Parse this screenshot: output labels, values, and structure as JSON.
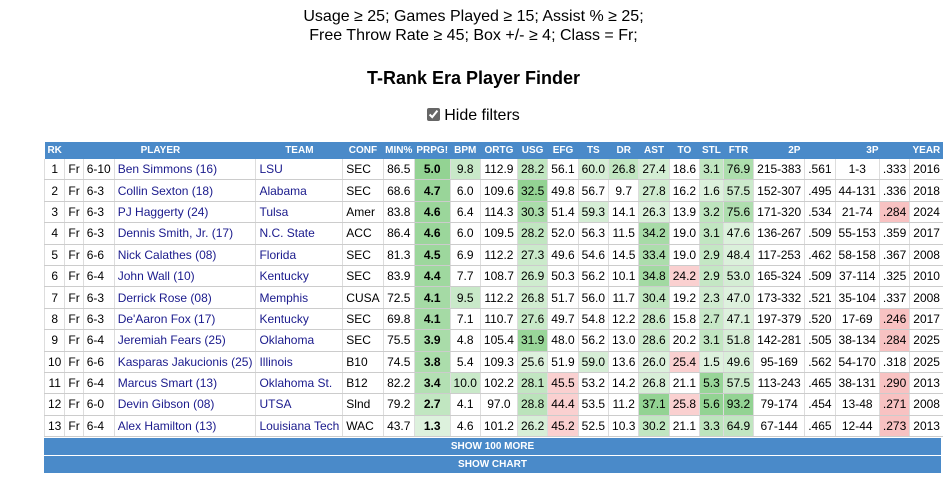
{
  "header": {
    "filter_lines": [
      "Usage ≥ 25; Games Played ≥ 15; Assist % ≥ 25;",
      "Free Throw Rate ≥ 45; Box +/- ≥ 4; Class = Fr;"
    ],
    "title": "T-Rank Era Player Finder",
    "checkbox_label": "Hide filters"
  },
  "table": {
    "columns": [
      "RK",
      "PLAYER",
      "TEAM",
      "CONF",
      "MIN%",
      "PRPG!",
      "BPM",
      "ORTG",
      "USG",
      "EFG",
      "TS",
      "DR",
      "AST",
      "TO",
      "STL",
      "FTR",
      "2P",
      "3P",
      "YEAR"
    ],
    "rows": [
      [
        "1",
        "Fr",
        "6-10",
        "Ben Simmons (16)",
        "LSU",
        "SEC",
        "86.5",
        "5.0",
        "9.8",
        "112.9",
        "28.2",
        "56.1",
        "60.0",
        "26.8",
        "27.4",
        "18.6",
        "3.1",
        "76.9",
        "215-383",
        ".561",
        "1-3",
        ".333",
        "2016"
      ],
      [
        "2",
        "Fr",
        "6-3",
        "Collin Sexton (18)",
        "Alabama",
        "SEC",
        "68.6",
        "4.7",
        "6.0",
        "109.6",
        "32.5",
        "49.8",
        "56.7",
        "9.7",
        "27.8",
        "16.2",
        "1.6",
        "57.5",
        "152-307",
        ".495",
        "44-131",
        ".336",
        "2018"
      ],
      [
        "3",
        "Fr",
        "6-3",
        "PJ Haggerty (24)",
        "Tulsa",
        "Amer",
        "83.8",
        "4.6",
        "6.4",
        "114.3",
        "30.3",
        "51.4",
        "59.3",
        "14.1",
        "26.3",
        "13.9",
        "3.2",
        "75.6",
        "171-320",
        ".534",
        "21-74",
        ".284",
        "2024"
      ],
      [
        "4",
        "Fr",
        "6-3",
        "Dennis Smith, Jr. (17)",
        "N.C. State",
        "ACC",
        "86.4",
        "4.6",
        "6.0",
        "109.5",
        "28.2",
        "52.0",
        "56.3",
        "11.5",
        "34.2",
        "19.0",
        "3.1",
        "47.6",
        "136-267",
        ".509",
        "55-153",
        ".359",
        "2017"
      ],
      [
        "5",
        "Fr",
        "6-6",
        "Nick Calathes (08)",
        "Florida",
        "SEC",
        "81.3",
        "4.5",
        "6.9",
        "112.2",
        "27.3",
        "49.6",
        "54.6",
        "14.5",
        "33.4",
        "19.0",
        "2.9",
        "48.4",
        "117-253",
        ".462",
        "58-158",
        ".367",
        "2008"
      ],
      [
        "6",
        "Fr",
        "6-4",
        "John Wall (10)",
        "Kentucky",
        "SEC",
        "83.9",
        "4.4",
        "7.7",
        "108.7",
        "26.9",
        "50.3",
        "56.2",
        "10.1",
        "34.8",
        "24.2",
        "2.9",
        "53.0",
        "165-324",
        ".509",
        "37-114",
        ".325",
        "2010"
      ],
      [
        "7",
        "Fr",
        "6-3",
        "Derrick Rose (08)",
        "Memphis",
        "CUSA",
        "72.5",
        "4.1",
        "9.5",
        "112.2",
        "26.8",
        "51.7",
        "56.0",
        "11.7",
        "30.4",
        "19.2",
        "2.3",
        "47.0",
        "173-332",
        ".521",
        "35-104",
        ".337",
        "2008"
      ],
      [
        "8",
        "Fr",
        "6-3",
        "De'Aaron Fox (17)",
        "Kentucky",
        "SEC",
        "69.8",
        "4.1",
        "7.1",
        "110.7",
        "27.6",
        "49.7",
        "54.8",
        "12.2",
        "28.6",
        "15.8",
        "2.7",
        "47.1",
        "197-379",
        ".520",
        "17-69",
        ".246",
        "2017"
      ],
      [
        "9",
        "Fr",
        "6-4",
        "Jeremiah Fears (25)",
        "Oklahoma",
        "SEC",
        "75.5",
        "3.9",
        "4.8",
        "105.4",
        "31.9",
        "48.0",
        "56.2",
        "13.0",
        "28.6",
        "20.2",
        "3.1",
        "51.8",
        "142-281",
        ".505",
        "38-134",
        ".284",
        "2025"
      ],
      [
        "10",
        "Fr",
        "6-6",
        "Kasparas Jakucionis (25)",
        "Illinois",
        "B10",
        "74.5",
        "3.8",
        "5.4",
        "109.3",
        "25.6",
        "51.9",
        "59.0",
        "13.6",
        "26.0",
        "25.4",
        "1.5",
        "49.6",
        "95-169",
        ".562",
        "54-170",
        ".318",
        "2025"
      ],
      [
        "11",
        "Fr",
        "6-4",
        "Marcus Smart (13)",
        "Oklahoma St.",
        "B12",
        "82.2",
        "3.4",
        "10.0",
        "102.2",
        "28.1",
        "45.5",
        "53.2",
        "14.2",
        "26.8",
        "21.1",
        "5.3",
        "57.5",
        "113-243",
        ".465",
        "38-131",
        ".290",
        "2013"
      ],
      [
        "12",
        "Fr",
        "6-0",
        "Devin Gibson (08)",
        "UTSA",
        "Slnd",
        "79.2",
        "2.7",
        "4.1",
        "97.0",
        "28.8",
        "44.4",
        "53.5",
        "11.2",
        "37.1",
        "25.8",
        "5.6",
        "93.2",
        "79-174",
        ".454",
        "13-48",
        ".271",
        "2008"
      ],
      [
        "13",
        "Fr",
        "6-4",
        "Alex Hamilton (13)",
        "Louisiana Tech",
        "WAC",
        "43.7",
        "1.3",
        "4.6",
        "101.2",
        "26.2",
        "45.2",
        "52.5",
        "10.3",
        "30.2",
        "21.1",
        "3.3",
        "64.9",
        "67-144",
        ".465",
        "12-44",
        ".273",
        "2013"
      ]
    ]
  },
  "buttons": [
    "SHOW 100 MORE",
    "SHOW CHART"
  ]
}
